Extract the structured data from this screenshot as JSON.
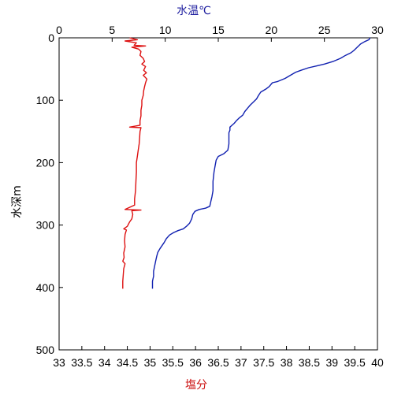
{
  "chart_data": {
    "type": "line",
    "title": "",
    "x_top": {
      "label": "水温℃",
      "range": [
        0,
        30
      ],
      "ticks": [
        "0",
        "5",
        "10",
        "15",
        "20",
        "25",
        "30"
      ],
      "color": "#1a1aa6"
    },
    "x_bottom": {
      "label": "塩分",
      "range": [
        33,
        40
      ],
      "ticks": [
        "33",
        "33.5",
        "34",
        "34.5",
        "35",
        "35.5",
        "36",
        "36.5",
        "37",
        "37.5",
        "38",
        "38.5",
        "39",
        "39.5",
        "40"
      ],
      "color": "#cc1010"
    },
    "y": {
      "label": "水深m",
      "range": [
        0,
        500
      ],
      "inverted": true,
      "ticks": [
        "0",
        "100",
        "200",
        "300",
        "400",
        "500"
      ]
    },
    "grid": false,
    "series": [
      {
        "axis": "top",
        "color": "#1020b0",
        "points": [
          [
            29.3,
            0
          ],
          [
            29.2,
            3
          ],
          [
            28.8,
            6
          ],
          [
            28.4,
            10
          ],
          [
            28.1,
            15
          ],
          [
            27.8,
            20
          ],
          [
            27.5,
            24
          ],
          [
            27.0,
            28
          ],
          [
            26.5,
            33
          ],
          [
            25.8,
            38
          ],
          [
            25.0,
            42
          ],
          [
            24.3,
            45
          ],
          [
            23.5,
            48
          ],
          [
            22.8,
            52
          ],
          [
            22.3,
            55
          ],
          [
            21.8,
            60
          ],
          [
            21.3,
            65
          ],
          [
            20.6,
            70
          ],
          [
            20.1,
            72
          ],
          [
            19.8,
            78
          ],
          [
            19.5,
            82
          ],
          [
            19.0,
            87
          ],
          [
            18.8,
            92
          ],
          [
            18.6,
            98
          ],
          [
            18.3,
            103
          ],
          [
            18.0,
            108
          ],
          [
            17.8,
            112
          ],
          [
            17.5,
            118
          ],
          [
            17.3,
            124
          ],
          [
            17.0,
            128
          ],
          [
            16.7,
            133
          ],
          [
            16.5,
            137
          ],
          [
            16.3,
            140
          ],
          [
            16.1,
            143
          ],
          [
            16.1,
            148
          ],
          [
            16.0,
            152
          ],
          [
            16.0,
            160
          ],
          [
            16.0,
            170
          ],
          [
            15.9,
            180
          ],
          [
            15.5,
            186
          ],
          [
            15.0,
            190
          ],
          [
            14.8,
            196
          ],
          [
            14.7,
            205
          ],
          [
            14.6,
            215
          ],
          [
            14.5,
            230
          ],
          [
            14.5,
            245
          ],
          [
            14.4,
            255
          ],
          [
            14.3,
            262
          ],
          [
            14.2,
            270
          ],
          [
            13.8,
            273
          ],
          [
            13.2,
            275
          ],
          [
            12.8,
            278
          ],
          [
            12.6,
            283
          ],
          [
            12.5,
            290
          ],
          [
            12.3,
            297
          ],
          [
            12.0,
            302
          ],
          [
            11.7,
            306
          ],
          [
            11.2,
            309
          ],
          [
            10.8,
            312
          ],
          [
            10.4,
            316
          ],
          [
            10.1,
            322
          ],
          [
            9.9,
            328
          ],
          [
            9.7,
            333
          ],
          [
            9.5,
            338
          ],
          [
            9.3,
            344
          ],
          [
            9.2,
            350
          ],
          [
            9.1,
            358
          ],
          [
            9.0,
            366
          ],
          [
            8.9,
            374
          ],
          [
            8.9,
            382
          ],
          [
            8.8,
            390
          ],
          [
            8.8,
            396
          ],
          [
            8.8,
            402
          ]
        ]
      },
      {
        "axis": "bottom",
        "color": "#dd1010",
        "points": [
          [
            34.55,
            0
          ],
          [
            34.72,
            3
          ],
          [
            34.45,
            5
          ],
          [
            34.7,
            8
          ],
          [
            34.65,
            12
          ],
          [
            34.9,
            13
          ],
          [
            34.6,
            15
          ],
          [
            34.75,
            18
          ],
          [
            34.8,
            22
          ],
          [
            34.78,
            28
          ],
          [
            34.85,
            33
          ],
          [
            34.88,
            38
          ],
          [
            34.82,
            42
          ],
          [
            34.9,
            46
          ],
          [
            34.86,
            52
          ],
          [
            34.92,
            56
          ],
          [
            34.85,
            60
          ],
          [
            34.93,
            66
          ],
          [
            34.9,
            72
          ],
          [
            34.88,
            78
          ],
          [
            34.86,
            85
          ],
          [
            34.85,
            92
          ],
          [
            34.82,
            100
          ],
          [
            34.82,
            108
          ],
          [
            34.8,
            116
          ],
          [
            34.8,
            125
          ],
          [
            34.78,
            133
          ],
          [
            34.78,
            140
          ],
          [
            34.55,
            143
          ],
          [
            34.8,
            144
          ],
          [
            34.78,
            150
          ],
          [
            34.77,
            160
          ],
          [
            34.76,
            170
          ],
          [
            34.74,
            180
          ],
          [
            34.72,
            190
          ],
          [
            34.7,
            200
          ],
          [
            34.7,
            215
          ],
          [
            34.69,
            230
          ],
          [
            34.68,
            245
          ],
          [
            34.66,
            258
          ],
          [
            34.66,
            268
          ],
          [
            34.45,
            275
          ],
          [
            34.8,
            276
          ],
          [
            34.6,
            277
          ],
          [
            34.62,
            283
          ],
          [
            34.6,
            290
          ],
          [
            34.55,
            295
          ],
          [
            34.5,
            302
          ],
          [
            34.42,
            306
          ],
          [
            34.48,
            308
          ],
          [
            34.45,
            315
          ],
          [
            34.44,
            325
          ],
          [
            34.45,
            335
          ],
          [
            34.42,
            345
          ],
          [
            34.43,
            352
          ],
          [
            34.4,
            358
          ],
          [
            34.45,
            362
          ],
          [
            34.42,
            370
          ],
          [
            34.41,
            380
          ],
          [
            34.4,
            390
          ],
          [
            34.4,
            402
          ]
        ]
      }
    ]
  }
}
